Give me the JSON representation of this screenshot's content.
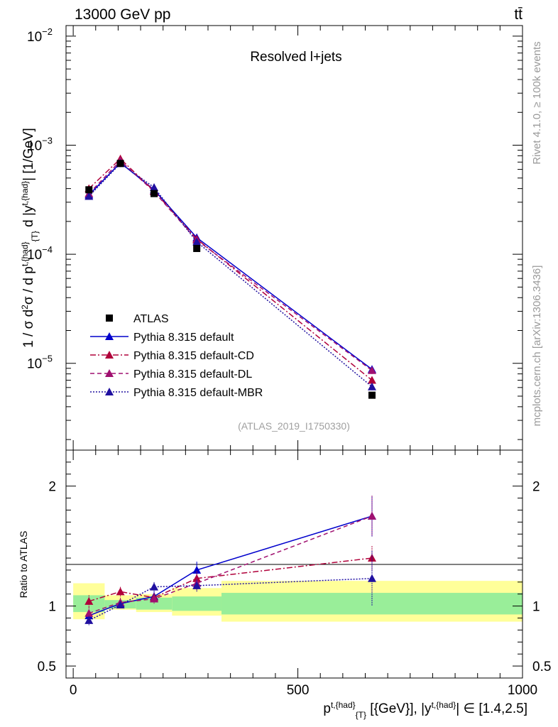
{
  "header": {
    "left": "13000 GeV pp",
    "right": "tt̄"
  },
  "side_labels": {
    "rivet": "Rivet 4.1.0, ≥ 100k events",
    "mcplots": "mcplots.cern.ch [arXiv:1306.3436]"
  },
  "chart_data": [
    {
      "panel": "main",
      "type": "line",
      "title": "Resolved l+jets",
      "watermark": "(ATLAS_2019_I1750330)",
      "ylabel": "1 / σ d²σ / d p^{t,{had}}_{T} d |y^{t,{had}}| [1/GeV]",
      "yscale": "log",
      "ylim": [
        1.6e-06,
        0.0125
      ],
      "xlim": [
        -16,
        1000
      ],
      "yticks": [
        {
          "value": 1e-05,
          "base": "10",
          "exp": "−5"
        },
        {
          "value": 0.0001,
          "base": "10",
          "exp": "−4"
        },
        {
          "value": 0.001,
          "base": "10",
          "exp": "−3"
        },
        {
          "value": 0.01,
          "base": "10",
          "exp": "−2"
        }
      ],
      "x": [
        35,
        105,
        180,
        275,
        665
      ],
      "data": {
        "name": "ATLAS",
        "values": [
          0.00039,
          0.00068,
          0.00036,
          0.000113,
          5.1e-06
        ]
      },
      "series": [
        {
          "name": "Pythia 8.315 default",
          "color": "#0000cc",
          "dash": "",
          "values": [
            0.00035,
            0.00069,
            0.00039,
            0.000142,
            8.8e-06
          ]
        },
        {
          "name": "Pythia 8.315 default-CD",
          "color": "#b0003a",
          "dash": "8,3,2,3",
          "values": [
            0.0004,
            0.00075,
            0.00038,
            0.000138,
            7e-06
          ]
        },
        {
          "name": "Pythia 8.315 default-DL",
          "color": "#a01070",
          "dash": "6,4",
          "values": [
            0.00036,
            0.00072,
            0.000375,
            0.000135,
            8.6e-06
          ]
        },
        {
          "name": "Pythia 8.315 default-MBR",
          "color": "#2010a0",
          "dash": "2,2",
          "values": [
            0.00034,
            0.00068,
            0.00041,
            0.00013,
            6.1e-06
          ]
        }
      ]
    },
    {
      "panel": "ratio",
      "type": "line",
      "ylabel": "Ratio to ATLAS",
      "ylim": [
        0.4,
        2.3
      ],
      "xlim": [
        -16,
        1000
      ],
      "yticks": [
        0.5,
        1,
        2
      ],
      "ytick_labels": [
        "0.5",
        "1",
        "2"
      ],
      "xticks": [
        0,
        500,
        1000
      ],
      "xtick_labels": [
        "0",
        "500",
        "1000"
      ],
      "xlabel": "p^{t,{had}}_{T} [{GeV}], |y^{t,{had}}| ∈ [1.4,2.5]",
      "uncertainty_bands": [
        {
          "x0": 0,
          "x1": 70,
          "yellow": [
            0.89,
            1.19
          ],
          "green": [
            0.95,
            1.09
          ]
        },
        {
          "x0": 70,
          "x1": 140,
          "yellow": [
            0.97,
            1.09
          ],
          "green": [
            0.98,
            1.05
          ]
        },
        {
          "x0": 140,
          "x1": 220,
          "yellow": [
            0.95,
            1.1
          ],
          "green": [
            0.97,
            1.07
          ]
        },
        {
          "x0": 220,
          "x1": 330,
          "yellow": [
            0.92,
            1.15
          ],
          "green": [
            0.96,
            1.08
          ]
        },
        {
          "x0": 330,
          "x1": 1000,
          "yellow": [
            0.87,
            1.21
          ],
          "green": [
            0.93,
            1.11
          ]
        }
      ],
      "x": [
        35,
        105,
        180,
        275,
        665
      ],
      "series": [
        {
          "name": "Pythia 8.315 default",
          "values": [
            0.92,
            1.02,
            1.08,
            1.3,
            1.75
          ],
          "err": [
            0.04,
            0.03,
            0.04,
            0.07,
            0.17
          ]
        },
        {
          "name": "Pythia 8.315 default-CD",
          "values": [
            1.04,
            1.12,
            1.07,
            1.23,
            1.4
          ],
          "err": [
            0.05,
            0.04,
            0.04,
            0.06,
            0.1
          ]
        },
        {
          "name": "Pythia 8.315 default-DL",
          "values": [
            0.94,
            1.03,
            1.06,
            1.19,
            1.75
          ],
          "err": [
            0.05,
            0.04,
            0.04,
            0.06,
            0.17
          ]
        },
        {
          "name": "Pythia 8.315 default-MBR",
          "values": [
            0.88,
            1.01,
            1.16,
            1.17,
            1.23
          ],
          "err": [
            0.04,
            0.03,
            0.04,
            0.05,
            0.23
          ]
        }
      ]
    }
  ]
}
